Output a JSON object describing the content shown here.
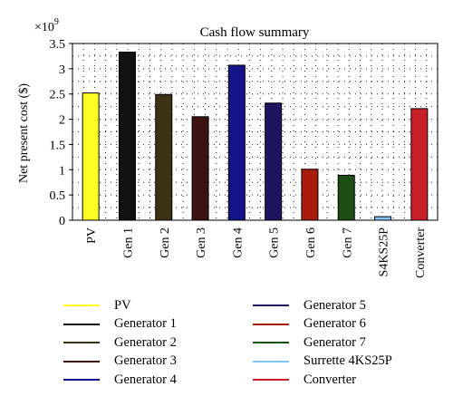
{
  "chart_data": {
    "type": "bar",
    "title": "Cash flow summary",
    "ylabel": "Net present cost ($)",
    "xlabel": "",
    "y_multiplier": "×10",
    "y_exponent": "9",
    "ylim": [
      0,
      3.5
    ],
    "yticks": [
      "0",
      "0.5",
      "1",
      "1.5",
      "2",
      "2.5",
      "3",
      "3.5"
    ],
    "grid": "dotted",
    "categories": [
      "PV",
      "Gen 1",
      "Gen 2",
      "Gen 3",
      "Gen 4",
      "Gen 5",
      "Gen 6",
      "Gen 7",
      "S4KS25P",
      "Converter"
    ],
    "values": [
      2.52,
      3.33,
      2.49,
      2.05,
      3.07,
      2.32,
      1.01,
      0.89,
      0.07,
      2.21
    ],
    "colors": [
      "#ffff22",
      "#111111",
      "#3d3314",
      "#3d1212",
      "#14148a",
      "#1e1460",
      "#a81c0c",
      "#1e4d14",
      "#7fc8ff",
      "#c8202a"
    ],
    "legend": {
      "placement": "bottom",
      "entries": [
        {
          "label": "PV",
          "color": "#ffff22"
        },
        {
          "label": "Generator 1",
          "color": "#111111"
        },
        {
          "label": "Generator 2",
          "color": "#3d3314"
        },
        {
          "label": "Generator 3",
          "color": "#3d1212"
        },
        {
          "label": "Generator 4",
          "color": "#14148a"
        },
        {
          "label": "Generator 5",
          "color": "#1e1460"
        },
        {
          "label": "Generator 6",
          "color": "#a81c0c"
        },
        {
          "label": "Generator 7",
          "color": "#1e4d14"
        },
        {
          "label": "Surrette 4KS25P",
          "color": "#7fc8ff"
        },
        {
          "label": "Converter",
          "color": "#c8202a"
        }
      ]
    }
  }
}
